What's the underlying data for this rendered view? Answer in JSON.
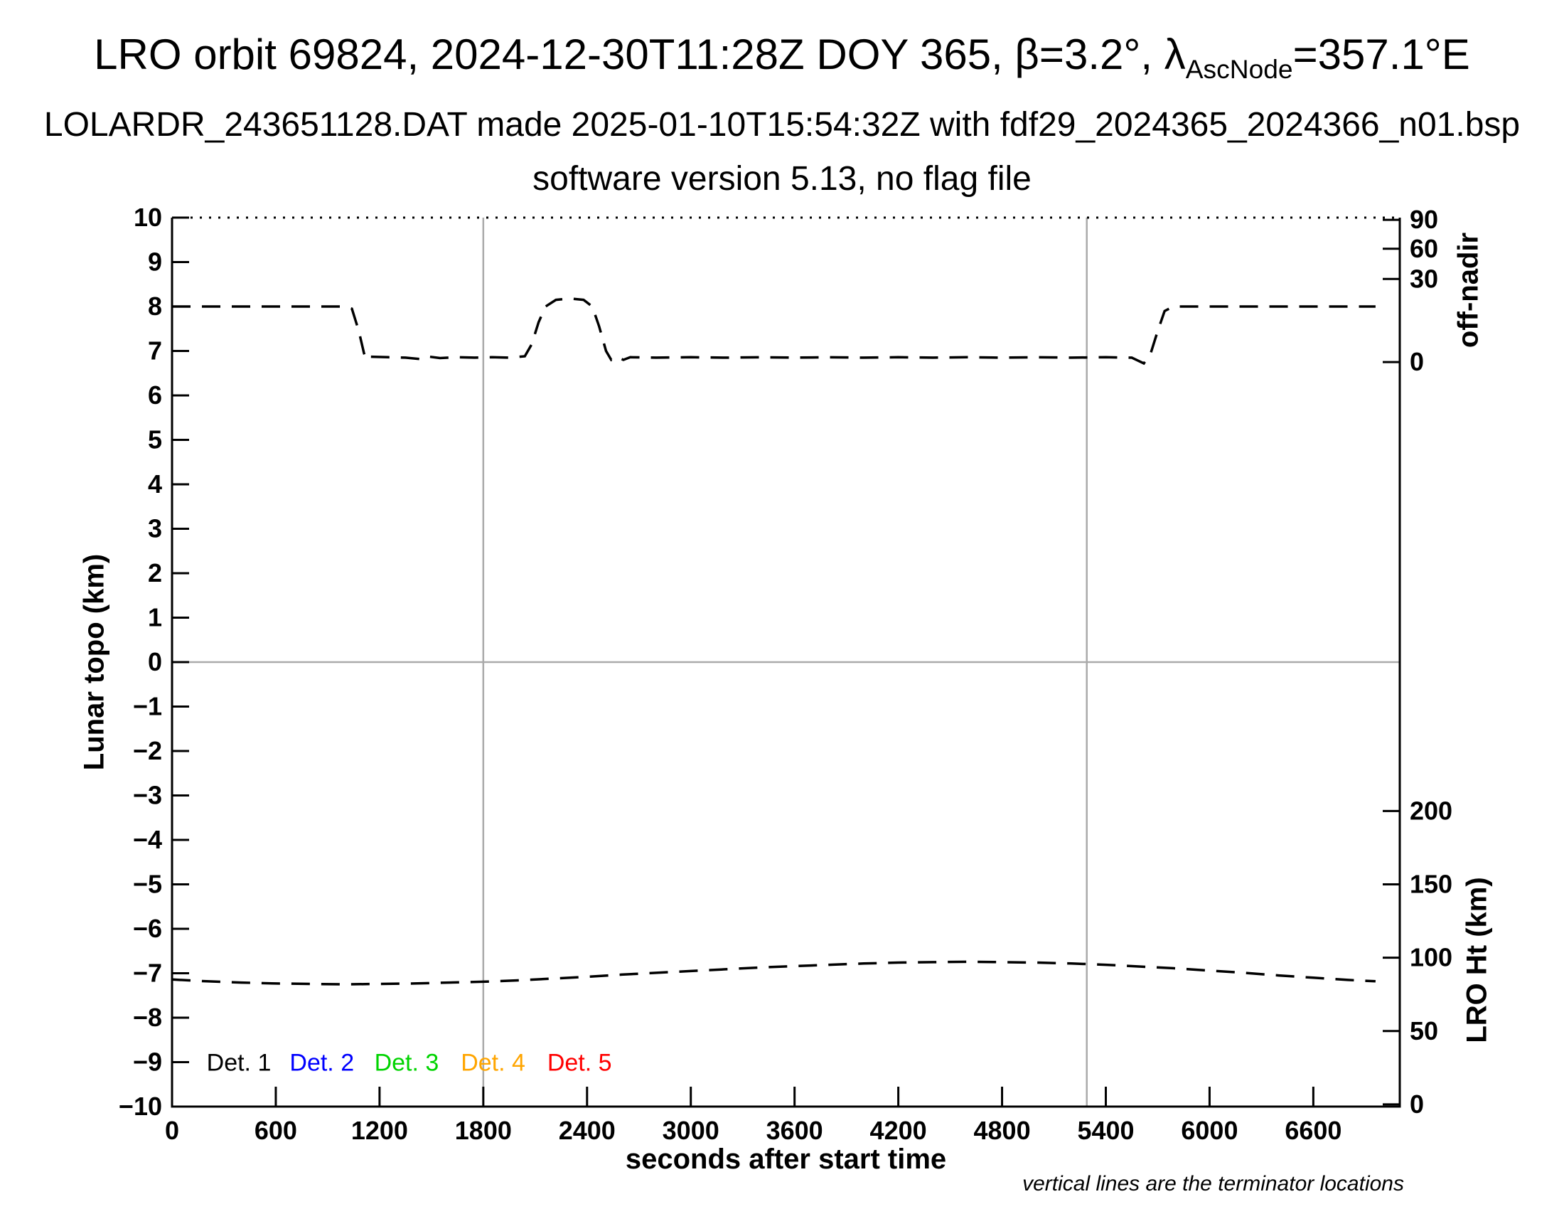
{
  "header": {
    "title_prefix": "LRO orbit 69824, 2024-12-30T11:28Z DOY 365, β=3.2°, λ",
    "title_subscript": "AscNode",
    "title_suffix": "=357.1°E",
    "subtitle1": "LOLARDR_243651128.DAT made 2025-01-10T15:54:32Z with fdf29_2024365_2024366_n01.bsp",
    "subtitle2": "software version 5.13, no flag file"
  },
  "chart_data": {
    "type": "line",
    "title": "LRO orbit 69824, 2024-12-30T11:28Z DOY 365, β=3.2°, λ_AscNode=357.1°E",
    "xlabel": "seconds after start time",
    "ylabel": "Lunar topo (km)",
    "right_axis_top_label": "off-nadir",
    "right_axis_bottom_label": "LRO Ht (km)",
    "footnote": "vertical lines are the terminator locations",
    "xlim": [
      0,
      7100
    ],
    "ylim": [
      -10,
      10
    ],
    "grid_on": false,
    "x_ticks": [
      0,
      600,
      1200,
      1800,
      2400,
      3000,
      3600,
      4200,
      4800,
      5400,
      6000,
      6600
    ],
    "y_ticks": [
      10,
      9,
      8,
      7,
      6,
      5,
      4,
      3,
      2,
      1,
      0,
      -1,
      -2,
      -3,
      -4,
      -5,
      -6,
      -7,
      -8,
      -9,
      -10
    ],
    "right_ticks_offnadir": [
      {
        "label": "90",
        "y": 9.95
      },
      {
        "label": "60",
        "y": 9.3
      },
      {
        "label": "30",
        "y": 8.62
      },
      {
        "label": "0",
        "y": 6.75
      }
    ],
    "right_ticks_lroht": [
      {
        "label": "200",
        "y": -3.35
      },
      {
        "label": "150",
        "y": -5.0
      },
      {
        "label": "100",
        "y": -6.65
      },
      {
        "label": "50",
        "y": -8.3
      },
      {
        "label": "0",
        "y": -9.95
      }
    ],
    "terminator_lines_x": [
      1800,
      5290
    ],
    "zero_line_y": 0,
    "grid_color": "#aaaaaa",
    "line_color": "#000000",
    "series": [
      {
        "name": "offnadir-angle-curve",
        "color": "#000000",
        "style": "dashed",
        "points": [
          [
            0,
            8.0
          ],
          [
            200,
            8.0
          ],
          [
            400,
            8.0
          ],
          [
            600,
            8.0
          ],
          [
            800,
            8.0
          ],
          [
            1000,
            8.0
          ],
          [
            1040,
            7.95
          ],
          [
            1080,
            7.45
          ],
          [
            1110,
            6.95
          ],
          [
            1125,
            6.8
          ],
          [
            1150,
            6.87
          ],
          [
            1250,
            6.86
          ],
          [
            1350,
            6.85
          ],
          [
            1430,
            6.82
          ],
          [
            1470,
            6.88
          ],
          [
            1550,
            6.84
          ],
          [
            1650,
            6.86
          ],
          [
            1750,
            6.85
          ],
          [
            1850,
            6.86
          ],
          [
            1950,
            6.85
          ],
          [
            2040,
            6.88
          ],
          [
            2080,
            7.15
          ],
          [
            2120,
            7.65
          ],
          [
            2160,
            8.0
          ],
          [
            2220,
            8.15
          ],
          [
            2300,
            8.18
          ],
          [
            2380,
            8.15
          ],
          [
            2430,
            8.0
          ],
          [
            2470,
            7.55
          ],
          [
            2510,
            7.0
          ],
          [
            2540,
            6.8
          ],
          [
            2570,
            6.87
          ],
          [
            2610,
            6.8
          ],
          [
            2650,
            6.86
          ],
          [
            2800,
            6.85
          ],
          [
            3000,
            6.86
          ],
          [
            3200,
            6.85
          ],
          [
            3400,
            6.86
          ],
          [
            3600,
            6.85
          ],
          [
            3800,
            6.86
          ],
          [
            4000,
            6.85
          ],
          [
            4200,
            6.86
          ],
          [
            4400,
            6.85
          ],
          [
            4600,
            6.86
          ],
          [
            4800,
            6.85
          ],
          [
            5000,
            6.86
          ],
          [
            5200,
            6.85
          ],
          [
            5400,
            6.86
          ],
          [
            5550,
            6.85
          ],
          [
            5620,
            6.72
          ],
          [
            5660,
            6.95
          ],
          [
            5700,
            7.45
          ],
          [
            5740,
            7.9
          ],
          [
            5790,
            8.0
          ],
          [
            5900,
            8.0
          ],
          [
            6100,
            8.0
          ],
          [
            6300,
            8.0
          ],
          [
            6500,
            8.0
          ],
          [
            6700,
            8.0
          ],
          [
            6900,
            8.0
          ],
          [
            6960,
            8.0
          ]
        ]
      },
      {
        "name": "lro-height-curve",
        "color": "#000000",
        "style": "dashed",
        "points": [
          [
            0,
            -7.14
          ],
          [
            200,
            -7.18
          ],
          [
            400,
            -7.21
          ],
          [
            600,
            -7.23
          ],
          [
            800,
            -7.24
          ],
          [
            1000,
            -7.25
          ],
          [
            1200,
            -7.24
          ],
          [
            1400,
            -7.23
          ],
          [
            1600,
            -7.21
          ],
          [
            1800,
            -7.19
          ],
          [
            2000,
            -7.16
          ],
          [
            2200,
            -7.12
          ],
          [
            2400,
            -7.08
          ],
          [
            2600,
            -7.03
          ],
          [
            2800,
            -6.99
          ],
          [
            3000,
            -6.95
          ],
          [
            3200,
            -6.91
          ],
          [
            3400,
            -6.87
          ],
          [
            3600,
            -6.84
          ],
          [
            3800,
            -6.81
          ],
          [
            4000,
            -6.78
          ],
          [
            4200,
            -6.76
          ],
          [
            4400,
            -6.75
          ],
          [
            4600,
            -6.74
          ],
          [
            4800,
            -6.75
          ],
          [
            5000,
            -6.76
          ],
          [
            5200,
            -6.78
          ],
          [
            5400,
            -6.81
          ],
          [
            5600,
            -6.85
          ],
          [
            5800,
            -6.89
          ],
          [
            6000,
            -6.94
          ],
          [
            6200,
            -6.99
          ],
          [
            6400,
            -7.05
          ],
          [
            6600,
            -7.1
          ],
          [
            6800,
            -7.15
          ],
          [
            6960,
            -7.18
          ]
        ]
      }
    ],
    "legend": {
      "y": -9.0,
      "items": [
        {
          "label": "Det. 1",
          "color": "#000000",
          "x": 200
        },
        {
          "label": "Det. 2",
          "color": "#0000ff",
          "x": 680
        },
        {
          "label": "Det. 3",
          "color": "#00d400",
          "x": 1170
        },
        {
          "label": "Det. 4",
          "color": "#ffa500",
          "x": 1670
        },
        {
          "label": "Det. 5",
          "color": "#ff0000",
          "x": 2170
        }
      ]
    }
  }
}
